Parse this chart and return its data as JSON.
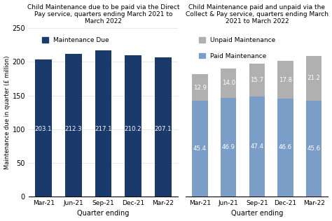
{
  "quarters": [
    "Mar-21",
    "Jun-21",
    "Sep-21",
    "Dec-21",
    "Mar-22"
  ],
  "maintenance_due": [
    203.1,
    212.3,
    217.1,
    210.2,
    207.1
  ],
  "paid": [
    45.4,
    46.9,
    47.4,
    46.6,
    45.6
  ],
  "unpaid": [
    12.9,
    14.0,
    15.7,
    17.8,
    21.2
  ],
  "bar_color_due": "#1a3a6b",
  "bar_color_paid": "#7b9ec9",
  "bar_color_unpaid": "#b0b0b0",
  "ylabel_left": "Maintenance due in quarter (£ million)",
  "xlabel": "Quarter ending",
  "title_left": "Child Maintenance due to be paid via the Direct\nPay service, quarters ending March 2021 to\nMarch 2022",
  "title_right": "Child Maintenance paid and unpaid via the\nCollect & Pay service, quarters ending March\n2021 to March 2022",
  "ylim_left": [
    0,
    250
  ],
  "ylim_right": [
    0,
    80
  ],
  "yticks_left": [
    0,
    50,
    100,
    150,
    200,
    250
  ],
  "background_color": "#ffffff",
  "legend_due": "Maintenance Due",
  "legend_paid": "Paid Maintenance",
  "legend_unpaid": "Unpaid Maintenance"
}
